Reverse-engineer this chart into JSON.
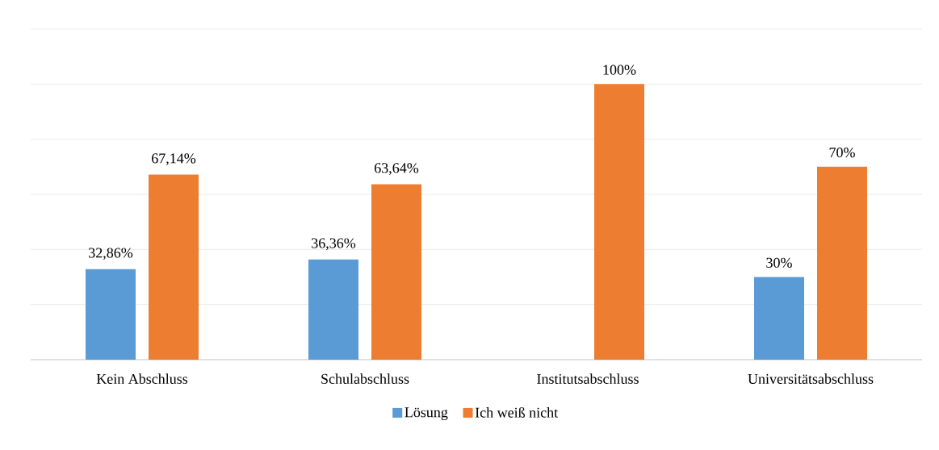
{
  "chart_data": {
    "type": "bar",
    "categories": [
      "Kein Abschluss",
      "Schulabschluss",
      "Institutsabschluss",
      "Universitätsabschluss"
    ],
    "series": [
      {
        "name": "Lösung",
        "color": "#5b9bd5",
        "values": [
          32.86,
          36.36,
          0,
          30
        ],
        "value_labels": [
          "32,86%",
          "36,36%",
          null,
          "30%"
        ]
      },
      {
        "name": "Ich weiß nicht",
        "color": "#ed7d31",
        "values": [
          67.14,
          63.64,
          100,
          70
        ],
        "value_labels": [
          "67,14%",
          "63,64%",
          "100%",
          "70%"
        ]
      }
    ],
    "ylim": [
      0,
      120
    ],
    "yticks": [
      {
        "value": 0,
        "label": null
      },
      {
        "value": 20,
        "label": null
      },
      {
        "value": 40,
        "label": null
      },
      {
        "value": 60,
        "label": null
      },
      {
        "value": 80,
        "label": null
      },
      {
        "value": 100,
        "label": null
      },
      {
        "value": 120,
        "label": null
      }
    ],
    "tick_labels": "x",
    "grid": "y",
    "legend": "bottom"
  }
}
